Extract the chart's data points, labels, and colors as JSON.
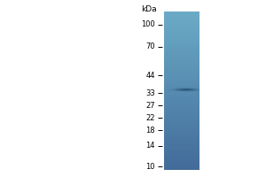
{
  "kda_label": "kDa",
  "markers": [
    100,
    70,
    44,
    33,
    27,
    22,
    18,
    14,
    10
  ],
  "bg_color": "#ffffff",
  "lane_color_top": "#2a5f82",
  "lane_color_bottom": "#7ab8d0",
  "band_kda": 35,
  "band_color": "#1a3f5c",
  "log_scale_min": 9.5,
  "log_scale_max": 115,
  "fig_width": 3.0,
  "fig_height": 2.0,
  "dpi": 100
}
